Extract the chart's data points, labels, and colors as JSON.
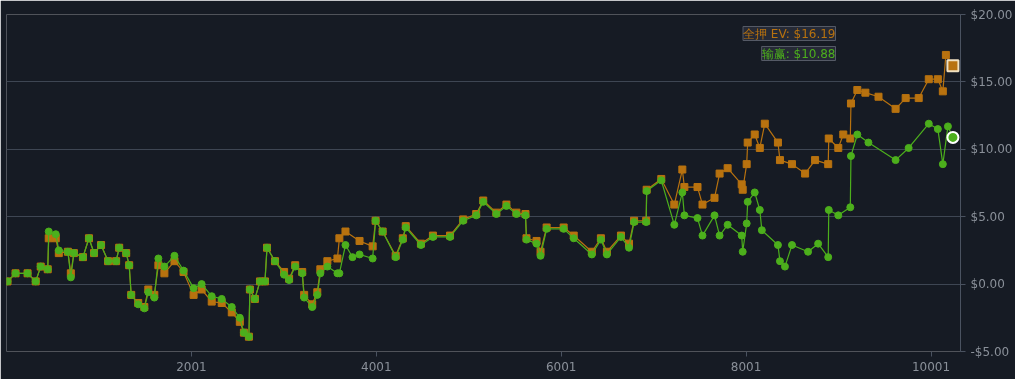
{
  "chart_data": {
    "type": "line",
    "grid": "y",
    "xlim": [
      0,
      10320
    ],
    "ylim": [
      -5,
      20
    ],
    "xticks": [
      2001,
      4001,
      6001,
      8001,
      10001
    ],
    "yticks": [
      {
        "value": -5,
        "label": "-$5.00"
      },
      {
        "value": 0,
        "label": "$0.00"
      },
      {
        "value": 5,
        "label": "$5.00"
      },
      {
        "value": 10,
        "label": "$10.00"
      },
      {
        "value": 15,
        "label": "$15.00"
      },
      {
        "value": 20,
        "label": "$20.00"
      }
    ],
    "series": [
      {
        "name": "全押 EV:",
        "color": "#b8720f",
        "marker": "square",
        "x": [
          11,
          98,
          228,
          316,
          370,
          446,
          457,
          533,
          566,
          664,
          696,
          729,
          827,
          892,
          947,
          1023,
          1099,
          1186,
          1219,
          1295,
          1327,
          1349,
          1425,
          1491,
          1534,
          1599,
          1643,
          1708,
          1817,
          1915,
          2024,
          2111,
          2220,
          2328,
          2437,
          2524,
          2568,
          2622,
          2633,
          2687,
          2742,
          2796,
          2818,
          2905,
          3003,
          3057,
          3123,
          3199,
          3220,
          3307,
          3362,
          3395,
          3471,
          3580,
          3601,
          3667,
          3819,
          3961,
          3993,
          4069,
          4210,
          4287,
          4319,
          4483,
          4613,
          4798,
          4940,
          5081,
          5157,
          5299,
          5408,
          5516,
          5614,
          5625,
          5734,
          5777,
          5843,
          6027,
          6136,
          6332,
          6430,
          6495,
          6647,
          6734,
          6789,
          6920,
          6925,
          7083,
          7224,
          7311,
          7333,
          7475,
          7529,
          7659,
          7714,
          7801,
          7953,
          7964,
          8007,
          8018,
          8094,
          8149,
          8203,
          8345,
          8367,
          8497,
          8639,
          8747,
          8889,
          8895,
          8998,
          9052,
          9128,
          9135,
          9204,
          9291,
          9433,
          9618,
          9727,
          9868,
          9977,
          10075,
          10129,
          10162,
          10238
        ],
        "values": [
          0.2,
          0.8,
          0.8,
          0.2,
          1.3,
          1.1,
          3.4,
          3.4,
          2.3,
          2.4,
          0.8,
          2.3,
          2.0,
          3.4,
          2.3,
          2.9,
          1.7,
          1.7,
          2.7,
          2.3,
          1.4,
          -0.8,
          -1.4,
          -1.7,
          -0.4,
          -0.8,
          1.4,
          0.8,
          1.7,
          0.9,
          -0.8,
          -0.4,
          -1.3,
          -1.4,
          -2.1,
          -2.8,
          -3.6,
          -3.9,
          -0.4,
          -1.1,
          0.2,
          0.2,
          2.7,
          1.7,
          0.9,
          0.4,
          1.4,
          0.9,
          -0.8,
          -1.5,
          -0.6,
          1.1,
          1.7,
          1.9,
          3.4,
          3.9,
          3.2,
          2.8,
          4.7,
          3.9,
          2.1,
          3.4,
          4.3,
          3.0,
          3.6,
          3.6,
          4.8,
          5.2,
          6.2,
          5.3,
          5.9,
          5.3,
          5.2,
          3.4,
          3.2,
          2.4,
          4.2,
          4.2,
          3.6,
          2.4,
          3.4,
          2.4,
          3.6,
          3.0,
          4.7,
          4.7,
          7.0,
          7.8,
          5.9,
          8.5,
          7.2,
          7.2,
          5.9,
          6.4,
          8.2,
          8.6,
          7.4,
          7.0,
          8.9,
          10.5,
          11.1,
          10.1,
          11.9,
          10.5,
          9.2,
          8.9,
          8.2,
          9.2,
          8.9,
          10.8,
          10.1,
          11.1,
          10.8,
          13.4,
          14.4,
          14.2,
          13.9,
          13.0,
          13.8,
          13.8,
          15.2,
          15.2,
          14.3,
          17.0,
          16.19
        ],
        "value_labels": [
          null,
          null,
          null,
          null,
          null,
          null,
          null,
          null,
          null,
          null,
          null,
          null,
          null,
          null,
          null,
          null,
          null,
          null,
          null,
          null,
          null,
          null,
          null,
          null,
          null,
          null,
          null,
          null,
          null,
          null,
          null,
          null,
          null,
          null,
          null,
          null,
          null,
          null,
          null,
          null,
          null,
          null,
          null,
          null,
          null,
          null,
          null,
          null,
          null,
          null,
          null,
          null,
          null,
          null,
          null,
          null,
          null,
          null,
          null,
          null,
          null,
          null,
          null,
          null,
          null,
          null,
          null,
          null,
          null,
          null,
          null,
          null,
          null,
          null,
          null,
          null,
          null,
          null,
          null,
          null,
          null,
          null,
          null,
          null,
          null,
          null,
          null,
          null,
          null,
          null,
          null,
          null,
          null,
          null,
          null,
          null,
          null,
          null,
          null,
          null,
          null,
          null,
          null,
          null,
          null,
          null,
          null,
          null,
          null,
          null,
          null,
          null,
          null,
          null,
          null,
          null,
          null,
          null,
          null,
          null,
          null,
          null,
          null,
          null,
          "$16.19"
        ]
      },
      {
        "name": "输赢:",
        "color": "#4caf1c",
        "marker": "circle",
        "x": [
          11,
          98,
          228,
          316,
          370,
          446,
          457,
          533,
          566,
          664,
          696,
          729,
          827,
          892,
          947,
          1023,
          1099,
          1186,
          1219,
          1295,
          1327,
          1349,
          1425,
          1491,
          1534,
          1599,
          1643,
          1708,
          1817,
          1915,
          2024,
          2111,
          2220,
          2328,
          2437,
          2524,
          2568,
          2622,
          2633,
          2687,
          2742,
          2796,
          2818,
          2905,
          3003,
          3057,
          3123,
          3199,
          3220,
          3307,
          3362,
          3395,
          3471,
          3580,
          3601,
          3667,
          3743,
          3819,
          3961,
          3993,
          4069,
          4210,
          4287,
          4319,
          4483,
          4613,
          4798,
          4940,
          5081,
          5157,
          5299,
          5408,
          5516,
          5614,
          5625,
          5734,
          5777,
          5843,
          6027,
          6136,
          6332,
          6430,
          6495,
          6647,
          6734,
          6789,
          6920,
          6925,
          7083,
          7224,
          7311,
          7333,
          7475,
          7529,
          7659,
          7714,
          7801,
          7953,
          7964,
          8007,
          8018,
          8094,
          8149,
          8171,
          8345,
          8367,
          8421,
          8497,
          8671,
          8780,
          8889,
          8895,
          8998,
          9128,
          9135,
          9204,
          9324,
          9618,
          9759,
          9977,
          10075,
          10129,
          10184,
          10238
        ],
        "values": [
          0.2,
          0.8,
          0.8,
          0.2,
          1.3,
          1.1,
          3.9,
          3.7,
          2.5,
          2.4,
          0.5,
          2.3,
          2.0,
          3.4,
          2.3,
          2.9,
          1.7,
          1.7,
          2.7,
          2.3,
          1.4,
          -0.8,
          -1.5,
          -1.8,
          -0.6,
          -1.0,
          1.9,
          1.3,
          2.1,
          1.0,
          -0.3,
          0,
          -0.9,
          -1.1,
          -1.7,
          -2.5,
          -3.6,
          -3.9,
          -0.4,
          -1.1,
          0.2,
          0.2,
          2.7,
          1.7,
          0.7,
          0.3,
          1.3,
          0.8,
          -1.0,
          -1.7,
          -0.8,
          0.8,
          1.3,
          0.8,
          0.8,
          2.9,
          2.0,
          2.2,
          1.9,
          4.7,
          3.9,
          2.0,
          3.3,
          4.2,
          2.9,
          3.5,
          3.5,
          4.7,
          5.1,
          6.1,
          5.2,
          5.8,
          5.2,
          5.1,
          3.3,
          3.0,
          2.1,
          4.1,
          4.1,
          3.4,
          2.2,
          3.3,
          2.2,
          3.5,
          2.7,
          4.6,
          4.6,
          6.9,
          7.7,
          4.4,
          6.8,
          5.1,
          4.9,
          3.6,
          5.1,
          3.6,
          4.4,
          3.6,
          2.4,
          4.5,
          6.1,
          6.8,
          5.5,
          4.0,
          2.9,
          1.7,
          1.3,
          2.9,
          2.4,
          3.0,
          2.0,
          5.5,
          5.1,
          5.7,
          9.5,
          11.1,
          10.5,
          9.2,
          10.1,
          11.9,
          11.5,
          8.9,
          11.7,
          10.88
        ],
        "value_labels": [
          null,
          null,
          null,
          null,
          null,
          null,
          null,
          null,
          null,
          null,
          null,
          null,
          null,
          null,
          null,
          null,
          null,
          null,
          null,
          null,
          null,
          null,
          null,
          null,
          null,
          null,
          null,
          null,
          null,
          null,
          null,
          null,
          null,
          null,
          null,
          null,
          null,
          null,
          null,
          null,
          null,
          null,
          null,
          null,
          null,
          null,
          null,
          null,
          null,
          null,
          null,
          null,
          null,
          null,
          null,
          null,
          null,
          null,
          null,
          null,
          null,
          null,
          null,
          null,
          null,
          null,
          null,
          null,
          null,
          null,
          null,
          null,
          null,
          null,
          null,
          null,
          null,
          null,
          null,
          null,
          null,
          null,
          null,
          null,
          null,
          null,
          null,
          null,
          null,
          null,
          null,
          null,
          null,
          null,
          null,
          null,
          null,
          null,
          null,
          null,
          null,
          null,
          null,
          null,
          null,
          null,
          null,
          null,
          null,
          null,
          null,
          null,
          null,
          null,
          null,
          null,
          null,
          null,
          null,
          null,
          null,
          null,
          null,
          "$10.88"
        ]
      }
    ]
  }
}
